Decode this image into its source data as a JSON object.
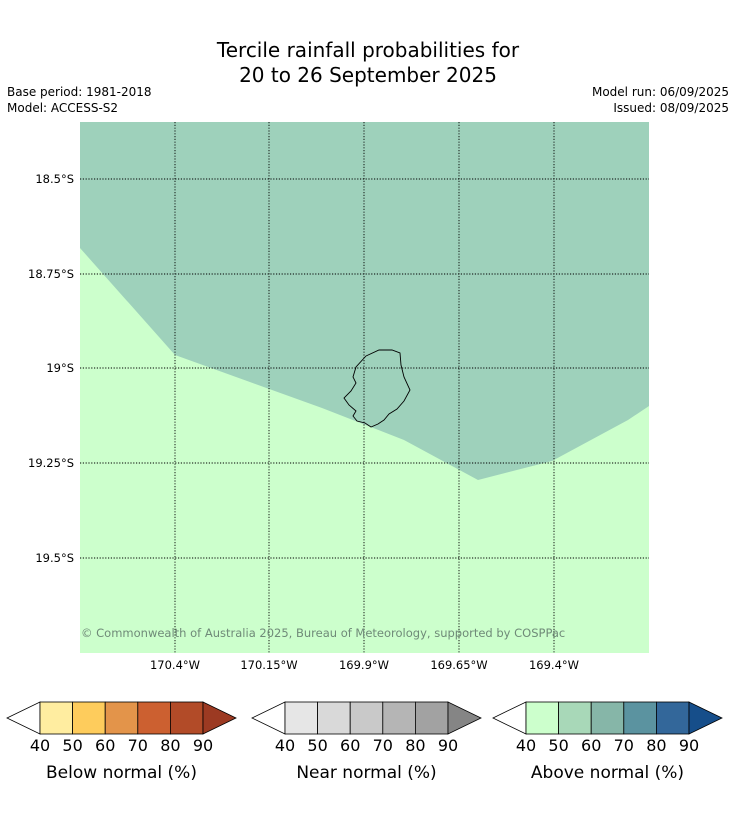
{
  "title": {
    "line1": "Tercile rainfall probabilities for",
    "line2": "20 to 26 September 2025"
  },
  "info": {
    "base_period": "Base period: 1981-2018",
    "model": "Model: ACCESS-S2",
    "model_run": "Model run: 06/09/2025",
    "issued": "Issued: 08/09/2025"
  },
  "map": {
    "lat_labels": [
      "18.5°S",
      "18.75°S",
      "19°S",
      "19.25°S",
      "19.5°S"
    ],
    "lon_labels": [
      "170.4°W",
      "170.15°W",
      "169.9°W",
      "169.65°W",
      "169.4°W"
    ],
    "copyright": "© Commonwealth of Australia 2025, Bureau of Meteorology, supported by COSPPac",
    "regions": [
      {
        "category": "Above normal",
        "range": "50-60",
        "color": "#9ed1bb"
      },
      {
        "category": "Above normal",
        "range": "40-50",
        "color": "#ccffcc"
      }
    ]
  },
  "colorbars": [
    {
      "label": "Below normal (%)",
      "ticks": [
        "40",
        "50",
        "60",
        "70",
        "80",
        "90"
      ],
      "colors": [
        "#ffffff",
        "#ffeda0",
        "#fecc5c",
        "#e3944a",
        "#cc6030",
        "#b24b28",
        "#9c3a22"
      ]
    },
    {
      "label": "Near normal (%)",
      "ticks": [
        "40",
        "50",
        "60",
        "70",
        "80",
        "90"
      ],
      "colors": [
        "#ffffff",
        "#e6e6e6",
        "#d9d9d9",
        "#c9c9c9",
        "#b5b5b5",
        "#a2a2a2",
        "#858585"
      ]
    },
    {
      "label": "Above normal (%)",
      "ticks": [
        "40",
        "50",
        "60",
        "70",
        "80",
        "90"
      ],
      "colors": [
        "#ffffff",
        "#ccffcc",
        "#a8d8b8",
        "#86b6a8",
        "#5b93a0",
        "#33679a",
        "#164e8a"
      ]
    }
  ]
}
